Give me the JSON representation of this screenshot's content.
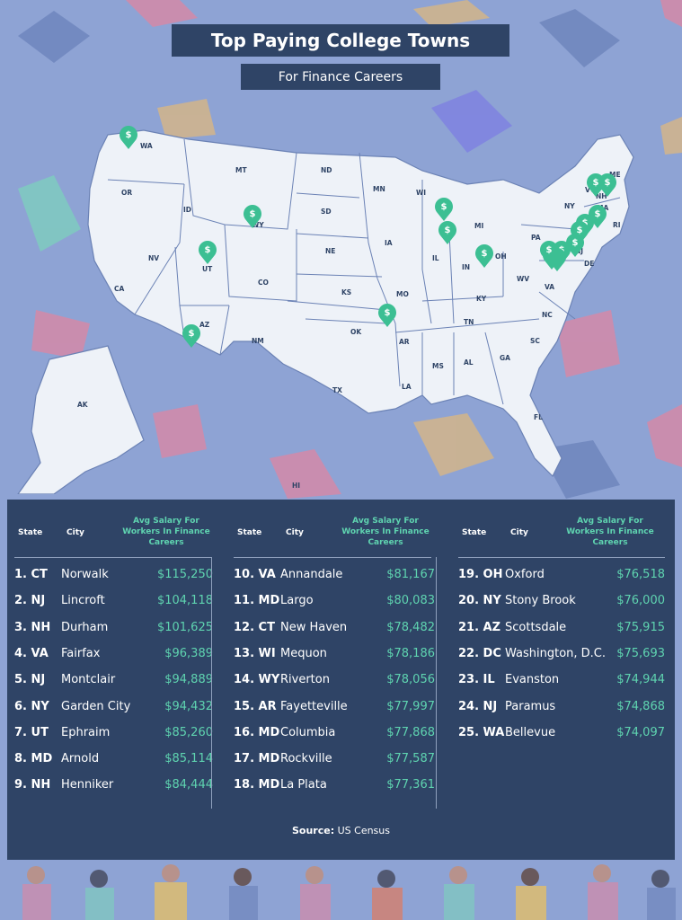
{
  "header": {
    "title": "Top Paying College Towns",
    "subtitle": "For Finance Careers"
  },
  "map": {
    "state_labels": [
      "WA",
      "OR",
      "CA",
      "NV",
      "ID",
      "MT",
      "WY",
      "UT",
      "AZ",
      "CO",
      "NM",
      "ND",
      "SD",
      "NE",
      "KS",
      "OK",
      "TX",
      "MN",
      "IA",
      "MO",
      "AR",
      "LA",
      "WI",
      "IL",
      "MI",
      "IN",
      "OH",
      "KY",
      "TN",
      "MS",
      "AL",
      "GA",
      "FL",
      "SC",
      "NC",
      "VA",
      "WV",
      "PA",
      "NY",
      "NJ",
      "DE",
      "MA",
      "RI",
      "NH",
      "VT",
      "ME",
      "AK",
      "HI"
    ]
  },
  "table": {
    "headers": {
      "state": "State",
      "city": "City",
      "salary": "Avg Salary For Workers In Finance Careers"
    },
    "columns": [
      [
        {
          "state": "1. CT",
          "city": "Norwalk",
          "salary": "$115,250"
        },
        {
          "state": "2. NJ",
          "city": "Lincroft",
          "salary": "$104,118"
        },
        {
          "state": "3. NH",
          "city": "Durham",
          "salary": "$101,625"
        },
        {
          "state": "4. VA",
          "city": "Fairfax",
          "salary": "$96,389"
        },
        {
          "state": "5. NJ",
          "city": "Montclair",
          "salary": "$94,889"
        },
        {
          "state": "6. NY",
          "city": "Garden City",
          "salary": "$94,432"
        },
        {
          "state": "7. UT",
          "city": "Ephraim",
          "salary": "$85,260"
        },
        {
          "state": "8. MD",
          "city": "Arnold",
          "salary": "$85,114"
        },
        {
          "state": "9. NH",
          "city": "Henniker",
          "salary": "$84,444"
        }
      ],
      [
        {
          "state": "10. VA",
          "city": "Annandale",
          "salary": "$81,167"
        },
        {
          "state": "11. MD",
          "city": "Largo",
          "salary": "$80,083"
        },
        {
          "state": "12. CT",
          "city": "New Haven",
          "salary": "$78,482"
        },
        {
          "state": "13. WI",
          "city": "Mequon",
          "salary": "$78,186"
        },
        {
          "state": "14. WY",
          "city": "Riverton",
          "salary": "$78,056"
        },
        {
          "state": "15. AR",
          "city": "Fayetteville",
          "salary": "$77,997"
        },
        {
          "state": "16. MD",
          "city": "Columbia",
          "salary": "$77,868"
        },
        {
          "state": "17. MD",
          "city": "Rockville",
          "salary": "$77,587"
        },
        {
          "state": "18. MD",
          "city": "La Plata",
          "salary": "$77,361"
        }
      ],
      [
        {
          "state": "19. OH",
          "city": "Oxford",
          "salary": "$76,518"
        },
        {
          "state": "20. NY",
          "city": "Stony Brook",
          "salary": "$76,000"
        },
        {
          "state": "21. AZ",
          "city": "Scottsdale",
          "salary": "$75,915"
        },
        {
          "state": "22. DC",
          "city": "Washington, D.C.",
          "salary": "$75,693"
        },
        {
          "state": "23. IL",
          "city": "Evanston",
          "salary": "$74,944"
        },
        {
          "state": "24. NJ",
          "city": "Paramus",
          "salary": "$74,868"
        },
        {
          "state": "25. WA",
          "city": "Bellevue",
          "salary": "$74,097"
        }
      ]
    ]
  },
  "source": {
    "label": "Source:",
    "value": "US Census"
  },
  "colors": {
    "background": "#8ea3d4",
    "panel": "#2f4466",
    "accent": "#5fd4b0",
    "map_fill": "#eef2f8",
    "pin": "#3cbf93"
  },
  "icons": {
    "pin": "dollar-pin-icon"
  }
}
